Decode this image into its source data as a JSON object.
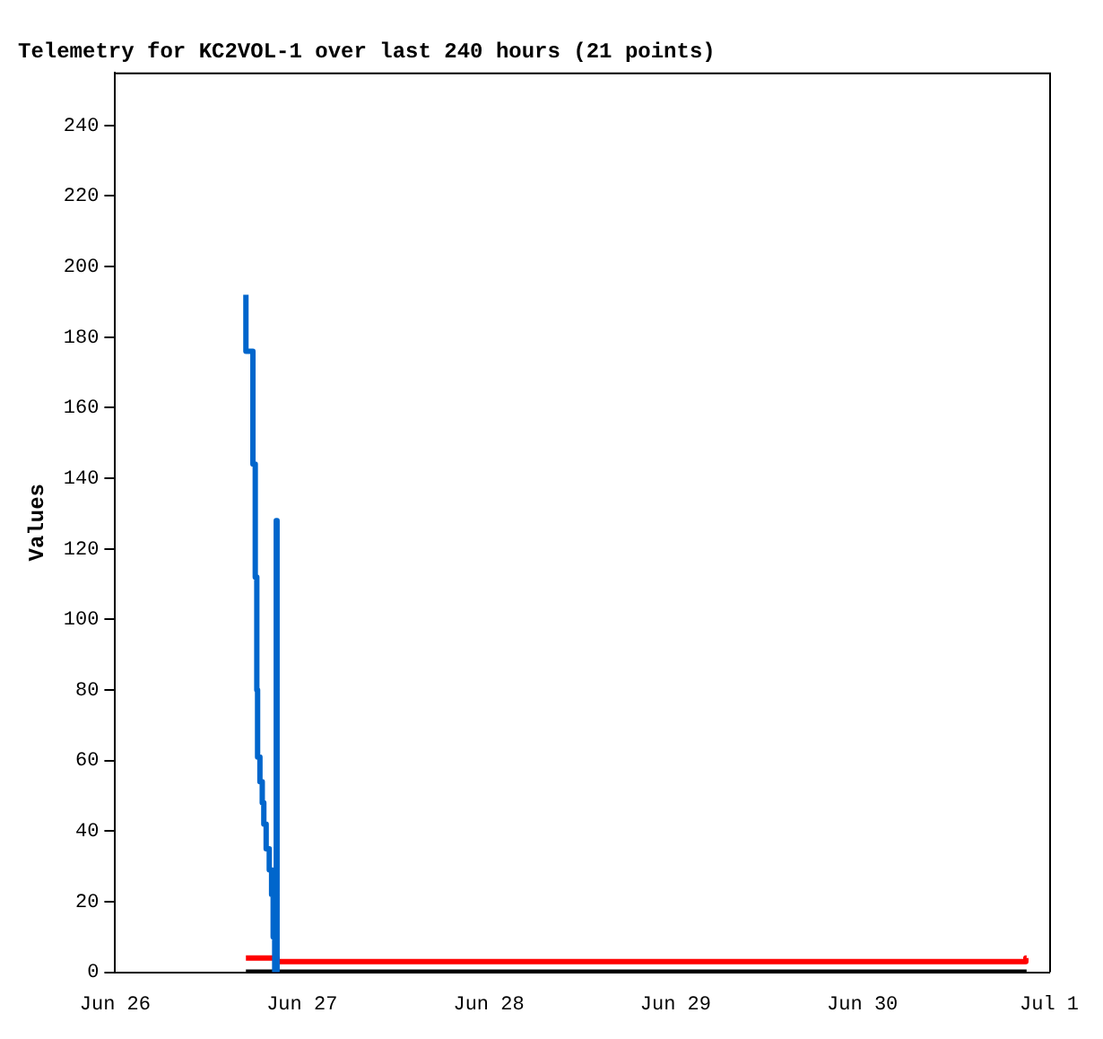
{
  "chart_data": {
    "type": "step",
    "title": "Telemetry for KC2VOL-1 over last 240 hours (21 points)",
    "ylabel": "Values",
    "xlim": [
      "--06-26",
      "--07-01"
    ],
    "xticks": [
      {
        "value": "--06-26",
        "label": "Jun 26"
      },
      {
        "value": "--06-27",
        "label": "Jun 27"
      },
      {
        "value": "--06-28",
        "label": "Jun 28"
      },
      {
        "value": "--06-29",
        "label": "Jun 29"
      },
      {
        "value": "--06-30",
        "label": "Jun 30"
      },
      {
        "value": "--07-01",
        "label": "Jul 1"
      }
    ],
    "ylim": [
      0,
      255
    ],
    "yticks": [
      0,
      20,
      40,
      60,
      80,
      100,
      120,
      140,
      160,
      180,
      200,
      220,
      240
    ],
    "grid": false,
    "legend": false,
    "series": [
      {
        "color": "#0066cc",
        "x": [
          "--06-26T16:48",
          "--06-26T17:42",
          "--06-26T18:00",
          "--06-26T18:12",
          "--06-26T18:18",
          "--06-26T18:36",
          "--06-26T18:54",
          "--06-26T19:06",
          "--06-26T19:24",
          "--06-26T19:48",
          "--06-26T20:06",
          "--06-26T20:18",
          "--06-26T20:30",
          "--06-26T20:42",
          "--06-26T20:48",
          "--06-26T21:00"
        ],
        "values": [
          192,
          176,
          144,
          112,
          80,
          61,
          54,
          48,
          42,
          35,
          29,
          22,
          10,
          0,
          128,
          0
        ]
      },
      {
        "color": "#ff0000",
        "x": [
          "--06-26T16:48",
          "--06-26T20:48",
          "--06-26T21:12",
          "--06-30T21:00",
          "--06-30T21:06"
        ],
        "values": [
          4,
          4,
          3,
          3,
          4
        ]
      },
      {
        "color": "#000000",
        "x": [
          "--06-26T16:48",
          "--06-30T21:06"
        ],
        "values": [
          0,
          0
        ]
      }
    ]
  }
}
